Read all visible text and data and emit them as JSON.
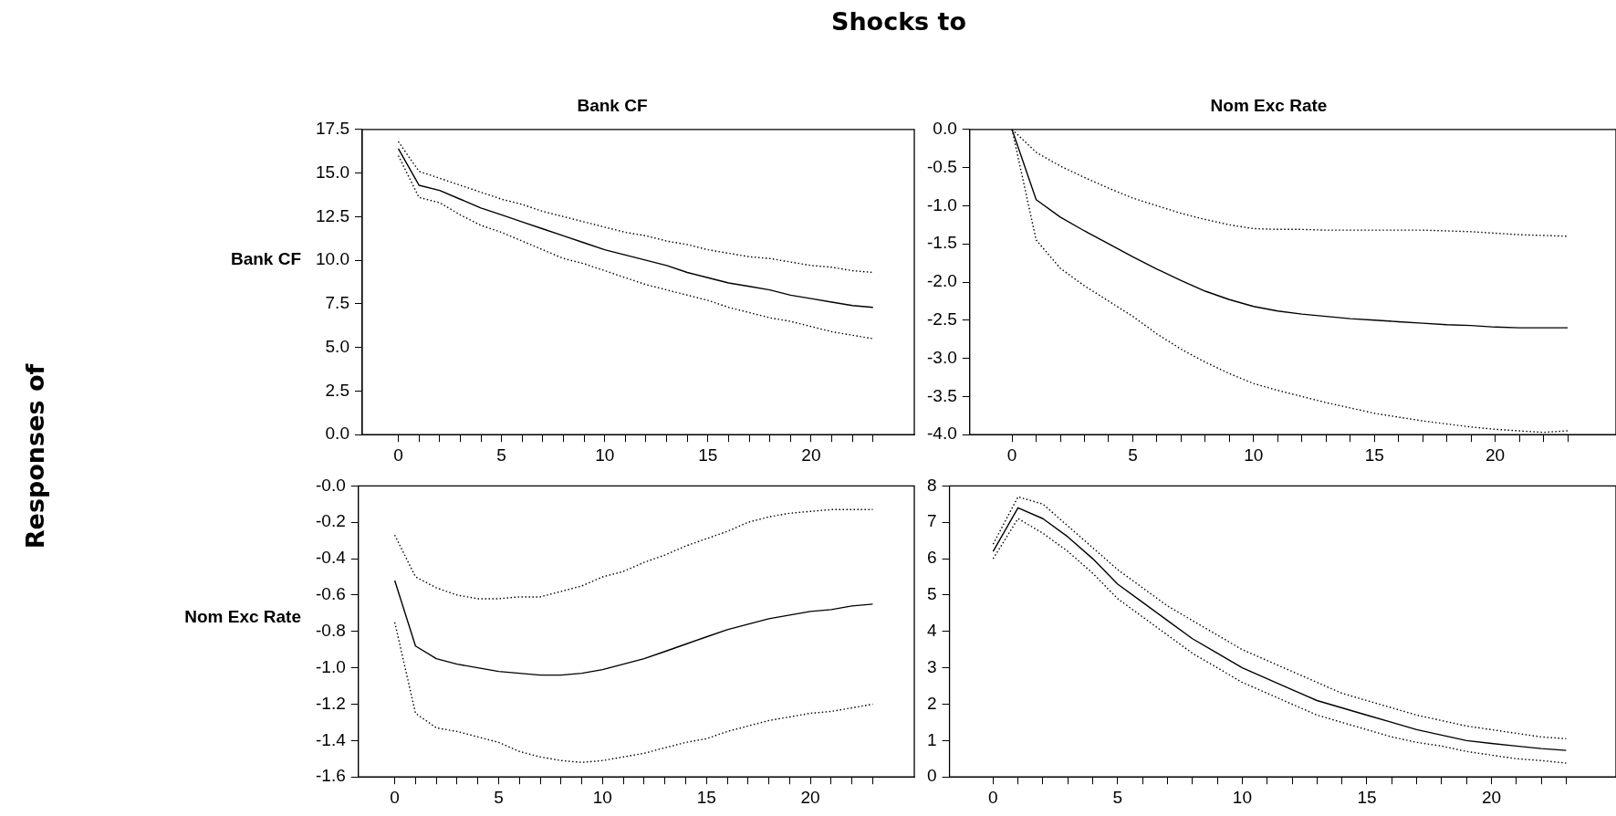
{
  "chart_data": [
    {
      "type": "line",
      "title": "Bank CF",
      "ylabel": "Bank CF",
      "annotations": [
        "Shocks to",
        "Responses of"
      ],
      "x": [
        0,
        1,
        2,
        3,
        4,
        5,
        6,
        7,
        8,
        9,
        10,
        11,
        12,
        13,
        14,
        15,
        16,
        17,
        18,
        19,
        20,
        21,
        22,
        23
      ],
      "xlim": [
        -1.75,
        25
      ],
      "xticks": [
        0,
        {
          "value": 1,
          "label": null
        },
        {
          "value": 2,
          "label": null
        },
        {
          "value": 3,
          "label": null
        },
        {
          "value": 4,
          "label": null
        },
        5,
        {
          "value": 6,
          "label": null
        },
        {
          "value": 7,
          "label": null
        },
        {
          "value": 8,
          "label": null
        },
        {
          "value": 9,
          "label": null
        },
        10,
        {
          "value": 11,
          "label": null
        },
        {
          "value": 12,
          "label": null
        },
        {
          "value": 13,
          "label": null
        },
        {
          "value": 14,
          "label": null
        },
        15,
        {
          "value": 16,
          "label": null
        },
        {
          "value": 17,
          "label": null
        },
        {
          "value": 18,
          "label": null
        },
        {
          "value": 19,
          "label": null
        },
        20,
        {
          "value": 21,
          "label": null
        },
        {
          "value": 22,
          "label": null
        },
        {
          "value": 23,
          "label": null
        }
      ],
      "ylim": [
        0,
        17.5
      ],
      "yticks": [
        {
          "value": 0,
          "label": "0.0"
        },
        {
          "value": 2.5,
          "label": "2.5"
        },
        {
          "value": 5,
          "label": "5.0"
        },
        {
          "value": 7.5,
          "label": "7.5"
        },
        {
          "value": 10,
          "label": "10.0"
        },
        {
          "value": 12.5,
          "label": "12.5"
        },
        {
          "value": 15,
          "label": "15.0"
        },
        {
          "value": 17.5,
          "label": "17.5"
        }
      ],
      "grid": false,
      "legend": false,
      "series": [
        {
          "color": "#000000",
          "line_style": "solid",
          "values": [
            16.4,
            14.3,
            14.0,
            13.5,
            13.0,
            12.6,
            12.2,
            11.8,
            11.4,
            11.0,
            10.6,
            10.3,
            10.0,
            9.7,
            9.3,
            9.0,
            8.7,
            8.5,
            8.3,
            8.0,
            7.8,
            7.6,
            7.4,
            7.3
          ]
        },
        {
          "color": "#000000",
          "line_style": "dotted",
          "values": [
            16.8,
            15.1,
            14.7,
            14.3,
            13.9,
            13.5,
            13.2,
            12.8,
            12.5,
            12.2,
            11.9,
            11.6,
            11.4,
            11.1,
            10.9,
            10.6,
            10.4,
            10.2,
            10.1,
            9.9,
            9.7,
            9.6,
            9.4,
            9.3
          ]
        },
        {
          "color": "#000000",
          "line_style": "dotted",
          "values": [
            16.0,
            13.6,
            13.3,
            12.6,
            12.0,
            11.6,
            11.1,
            10.6,
            10.1,
            9.8,
            9.4,
            9.0,
            8.6,
            8.3,
            8.0,
            7.7,
            7.3,
            7.0,
            6.7,
            6.5,
            6.2,
            5.9,
            5.7,
            5.5
          ]
        }
      ]
    },
    {
      "type": "line",
      "title": "Nom Exc Rate",
      "x": [
        0,
        1,
        2,
        3,
        4,
        5,
        6,
        7,
        8,
        9,
        10,
        11,
        12,
        13,
        14,
        15,
        16,
        17,
        18,
        19,
        20,
        21,
        22,
        23
      ],
      "xlim": [
        -1.75,
        25
      ],
      "xticks": [
        0,
        {
          "value": 1,
          "label": null
        },
        {
          "value": 2,
          "label": null
        },
        {
          "value": 3,
          "label": null
        },
        {
          "value": 4,
          "label": null
        },
        5,
        {
          "value": 6,
          "label": null
        },
        {
          "value": 7,
          "label": null
        },
        {
          "value": 8,
          "label": null
        },
        {
          "value": 9,
          "label": null
        },
        10,
        {
          "value": 11,
          "label": null
        },
        {
          "value": 12,
          "label": null
        },
        {
          "value": 13,
          "label": null
        },
        {
          "value": 14,
          "label": null
        },
        15,
        {
          "value": 16,
          "label": null
        },
        {
          "value": 17,
          "label": null
        },
        {
          "value": 18,
          "label": null
        },
        {
          "value": 19,
          "label": null
        },
        20,
        {
          "value": 21,
          "label": null
        },
        {
          "value": 22,
          "label": null
        },
        {
          "value": 23,
          "label": null
        }
      ],
      "ylim": [
        -4,
        0
      ],
      "yticks": [
        {
          "value": -4,
          "label": "-4.0"
        },
        {
          "value": -3.5,
          "label": "-3.5"
        },
        {
          "value": -3,
          "label": "-3.0"
        },
        {
          "value": -2.5,
          "label": "-2.5"
        },
        {
          "value": -2,
          "label": "-2.0"
        },
        {
          "value": -1.5,
          "label": "-1.5"
        },
        {
          "value": -1,
          "label": "-1.0"
        },
        {
          "value": -0.5,
          "label": "-0.5"
        },
        {
          "value": 0,
          "label": "0.0"
        }
      ],
      "grid": false,
      "legend": false,
      "series": [
        {
          "color": "#000000",
          "line_style": "solid",
          "values": [
            0,
            -0.92,
            -1.15,
            -1.33,
            -1.5,
            -1.67,
            -1.83,
            -1.98,
            -2.12,
            -2.23,
            -2.32,
            -2.38,
            -2.42,
            -2.45,
            -2.48,
            -2.5,
            -2.52,
            -2.54,
            -2.56,
            -2.57,
            -2.59,
            -2.6,
            -2.6,
            -2.6
          ]
        },
        {
          "color": "#000000",
          "line_style": "dotted",
          "values": [
            0,
            -0.3,
            -0.48,
            -0.63,
            -0.77,
            -0.9,
            -1.0,
            -1.1,
            -1.18,
            -1.25,
            -1.3,
            -1.31,
            -1.31,
            -1.32,
            -1.32,
            -1.32,
            -1.32,
            -1.32,
            -1.33,
            -1.34,
            -1.36,
            -1.38,
            -1.39,
            -1.4
          ]
        },
        {
          "color": "#000000",
          "line_style": "dotted",
          "values": [
            0,
            -1.45,
            -1.82,
            -2.05,
            -2.25,
            -2.45,
            -2.68,
            -2.88,
            -3.05,
            -3.2,
            -3.33,
            -3.42,
            -3.5,
            -3.58,
            -3.65,
            -3.72,
            -3.77,
            -3.82,
            -3.86,
            -3.9,
            -3.93,
            -3.95,
            -3.97,
            -3.95
          ]
        }
      ]
    },
    {
      "type": "line",
      "ylabel": "Nom Exc Rate",
      "x": [
        0,
        1,
        2,
        3,
        4,
        5,
        6,
        7,
        8,
        9,
        10,
        11,
        12,
        13,
        14,
        15,
        16,
        17,
        18,
        19,
        20,
        21,
        22,
        23
      ],
      "xlim": [
        -1.75,
        25
      ],
      "xticks": [
        0,
        {
          "value": 1,
          "label": null
        },
        {
          "value": 2,
          "label": null
        },
        {
          "value": 3,
          "label": null
        },
        {
          "value": 4,
          "label": null
        },
        5,
        {
          "value": 6,
          "label": null
        },
        {
          "value": 7,
          "label": null
        },
        {
          "value": 8,
          "label": null
        },
        {
          "value": 9,
          "label": null
        },
        10,
        {
          "value": 11,
          "label": null
        },
        {
          "value": 12,
          "label": null
        },
        {
          "value": 13,
          "label": null
        },
        {
          "value": 14,
          "label": null
        },
        15,
        {
          "value": 16,
          "label": null
        },
        {
          "value": 17,
          "label": null
        },
        {
          "value": 18,
          "label": null
        },
        {
          "value": 19,
          "label": null
        },
        20,
        {
          "value": 21,
          "label": null
        },
        {
          "value": 22,
          "label": null
        },
        {
          "value": 23,
          "label": null
        }
      ],
      "ylim": [
        -1.6,
        0
      ],
      "yticks": [
        {
          "value": -1.6,
          "label": "-1.6"
        },
        {
          "value": -1.4,
          "label": "-1.4"
        },
        {
          "value": -1.2,
          "label": "-1.2"
        },
        {
          "value": -1,
          "label": "-1.0"
        },
        {
          "value": -0.8,
          "label": "-0.8"
        },
        {
          "value": -0.6,
          "label": "-0.6"
        },
        {
          "value": -0.4,
          "label": "-0.4"
        },
        {
          "value": -0.2,
          "label": "-0.2"
        },
        {
          "value": 0,
          "label": "-0.0"
        }
      ],
      "grid": false,
      "legend": false,
      "series": [
        {
          "color": "#000000",
          "line_style": "solid",
          "values": [
            -0.52,
            -0.88,
            -0.95,
            -0.98,
            -1.0,
            -1.02,
            -1.03,
            -1.04,
            -1.04,
            -1.03,
            -1.01,
            -0.98,
            -0.95,
            -0.91,
            -0.87,
            -0.83,
            -0.79,
            -0.76,
            -0.73,
            -0.71,
            -0.69,
            -0.68,
            -0.66,
            -0.65
          ]
        },
        {
          "color": "#000000",
          "line_style": "dotted",
          "values": [
            -0.27,
            -0.5,
            -0.56,
            -0.6,
            -0.62,
            -0.62,
            -0.61,
            -0.61,
            -0.58,
            -0.55,
            -0.5,
            -0.47,
            -0.42,
            -0.38,
            -0.33,
            -0.29,
            -0.25,
            -0.2,
            -0.17,
            -0.15,
            -0.14,
            -0.13,
            -0.13,
            -0.13
          ]
        },
        {
          "color": "#000000",
          "line_style": "dotted",
          "values": [
            -0.75,
            -1.25,
            -1.33,
            -1.35,
            -1.38,
            -1.41,
            -1.46,
            -1.49,
            -1.51,
            -1.52,
            -1.51,
            -1.49,
            -1.47,
            -1.44,
            -1.41,
            -1.39,
            -1.35,
            -1.32,
            -1.29,
            -1.27,
            -1.25,
            -1.24,
            -1.22,
            -1.2
          ]
        }
      ]
    },
    {
      "type": "line",
      "x": [
        0,
        1,
        2,
        3,
        4,
        5,
        6,
        7,
        8,
        9,
        10,
        11,
        12,
        13,
        14,
        15,
        16,
        17,
        18,
        19,
        20,
        21,
        22,
        23
      ],
      "xlim": [
        -1.75,
        25
      ],
      "xticks": [
        0,
        {
          "value": 1,
          "label": null
        },
        {
          "value": 2,
          "label": null
        },
        {
          "value": 3,
          "label": null
        },
        {
          "value": 4,
          "label": null
        },
        5,
        {
          "value": 6,
          "label": null
        },
        {
          "value": 7,
          "label": null
        },
        {
          "value": 8,
          "label": null
        },
        {
          "value": 9,
          "label": null
        },
        10,
        {
          "value": 11,
          "label": null
        },
        {
          "value": 12,
          "label": null
        },
        {
          "value": 13,
          "label": null
        },
        {
          "value": 14,
          "label": null
        },
        15,
        {
          "value": 16,
          "label": null
        },
        {
          "value": 17,
          "label": null
        },
        {
          "value": 18,
          "label": null
        },
        {
          "value": 19,
          "label": null
        },
        20,
        {
          "value": 21,
          "label": null
        },
        {
          "value": 22,
          "label": null
        },
        {
          "value": 23,
          "label": null
        }
      ],
      "ylim": [
        0,
        8
      ],
      "yticks": [
        0,
        1,
        2,
        3,
        4,
        5,
        6,
        7,
        8
      ],
      "grid": false,
      "legend": false,
      "series": [
        {
          "color": "#000000",
          "line_style": "solid",
          "values": [
            6.2,
            7.4,
            7.1,
            6.6,
            6.0,
            5.3,
            4.8,
            4.3,
            3.8,
            3.4,
            3.0,
            2.7,
            2.4,
            2.1,
            1.9,
            1.7,
            1.5,
            1.3,
            1.15,
            1.0,
            0.92,
            0.85,
            0.78,
            0.73
          ]
        },
        {
          "color": "#000000",
          "line_style": "dotted",
          "values": [
            6.4,
            7.7,
            7.5,
            6.9,
            6.3,
            5.7,
            5.2,
            4.7,
            4.3,
            3.9,
            3.5,
            3.2,
            2.9,
            2.6,
            2.3,
            2.1,
            1.9,
            1.7,
            1.55,
            1.4,
            1.3,
            1.2,
            1.1,
            1.05
          ]
        },
        {
          "color": "#000000",
          "line_style": "dotted",
          "values": [
            6.0,
            7.1,
            6.7,
            6.2,
            5.6,
            4.9,
            4.4,
            3.9,
            3.4,
            3.0,
            2.6,
            2.3,
            2.0,
            1.7,
            1.5,
            1.3,
            1.1,
            0.95,
            0.85,
            0.7,
            0.6,
            0.5,
            0.45,
            0.38
          ]
        }
      ]
    }
  ]
}
